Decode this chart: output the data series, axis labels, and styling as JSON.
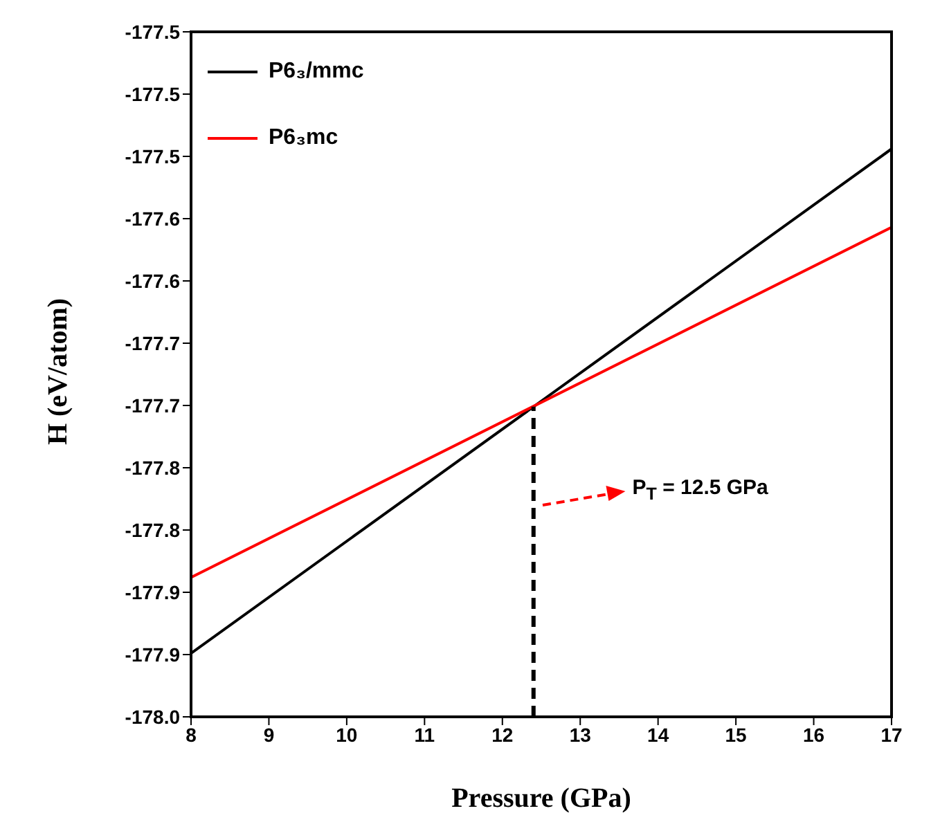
{
  "chart_data": {
    "type": "line",
    "xlabel": "Pressure (GPa)",
    "ylabel": "H (eV/atom)",
    "xlim": [
      8,
      17
    ],
    "xticks": [
      8,
      9,
      10,
      11,
      12,
      13,
      14,
      15,
      16,
      17
    ],
    "ylim": [
      -178.0,
      -177.45
    ],
    "yticks": [
      {
        "value": -178.0,
        "label": "-178.0"
      },
      {
        "value": -177.95,
        "label": "-177.9"
      },
      {
        "value": -177.9,
        "label": "-177.9"
      },
      {
        "value": -177.85,
        "label": "-177.8"
      },
      {
        "value": -177.8,
        "label": "-177.8"
      },
      {
        "value": -177.75,
        "label": "-177.7"
      },
      {
        "value": -177.7,
        "label": "-177.7"
      },
      {
        "value": -177.65,
        "label": "-177.6"
      },
      {
        "value": -177.6,
        "label": "-177.6"
      },
      {
        "value": -177.55,
        "label": "-177.5"
      },
      {
        "value": -177.5,
        "label": "-177.5"
      },
      {
        "value": -177.45,
        "label": "-177.5"
      }
    ],
    "legend": "top left",
    "series": [
      {
        "name": "P6₃/mmc",
        "color": "#000000",
        "x": [
          8,
          17
        ],
        "values": [
          -177.949,
          -177.544
        ]
      },
      {
        "name": "P6₃mc",
        "color": "#ff0000",
        "x": [
          8,
          17
        ],
        "values": [
          -177.888,
          -177.607
        ]
      },
      {
        "color": "#000000",
        "type": "line",
        "line_style": "dashed",
        "x": [
          12.4,
          12.4
        ],
        "values": [
          -178.0,
          -177.751
        ]
      }
    ],
    "annotations": [
      "P$_{T}$ = 12.5 GPa"
    ]
  }
}
